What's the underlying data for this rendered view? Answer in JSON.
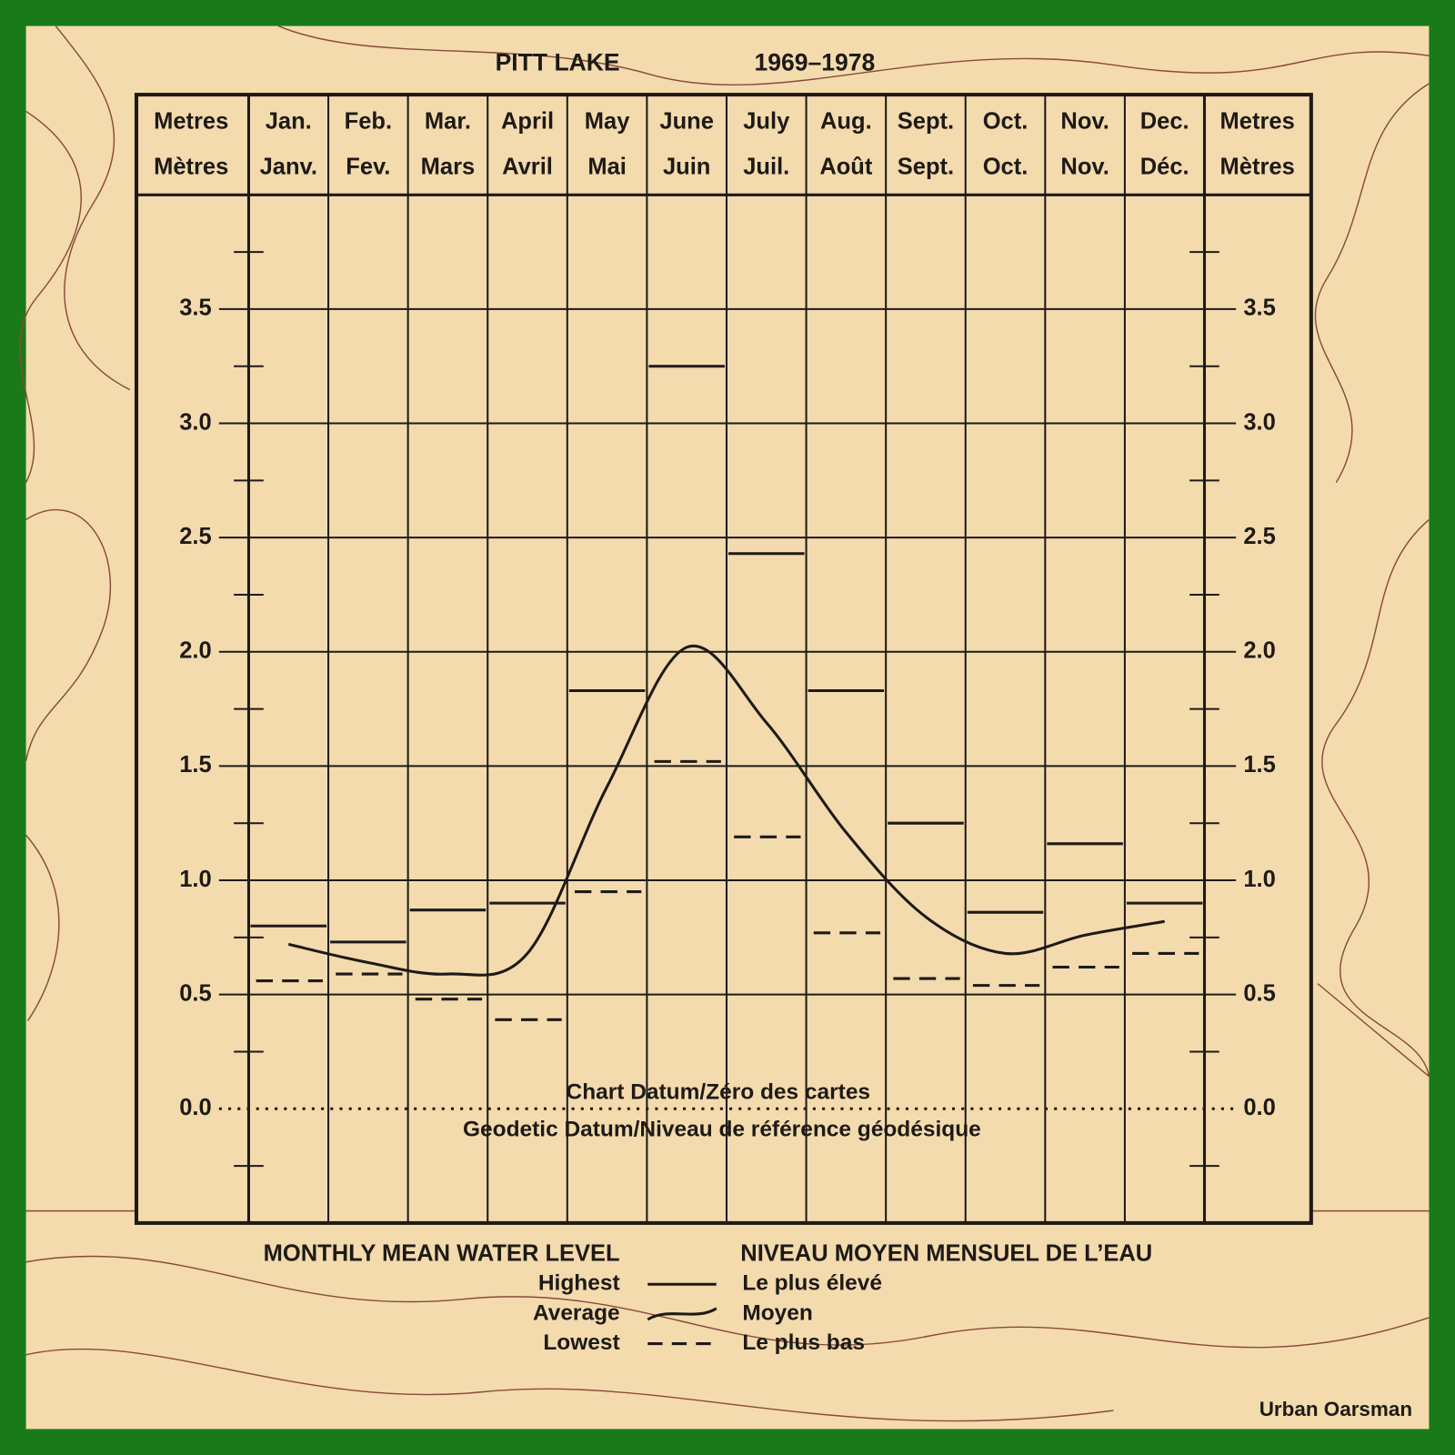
{
  "chart_data": {
    "type": "line",
    "title": "PITT LAKE",
    "period": "1969–1978",
    "y_label": "Metres",
    "y_label_fr": "Mètres",
    "categories": [
      "Jan.",
      "Feb.",
      "Mar.",
      "April",
      "May",
      "June",
      "July",
      "Aug.",
      "Sept.",
      "Oct.",
      "Nov.",
      "Dec."
    ],
    "categories_fr": [
      "Janv.",
      "Fev.",
      "Mars",
      "Avril",
      "Mai",
      "Juin",
      "Juil.",
      "Août",
      "Sept.",
      "Oct.",
      "Nov.",
      "Déc."
    ],
    "series": [
      {
        "name": "Highest",
        "name_fr": "Le plus élevé",
        "color": "#1e1a16",
        "line_style": "step",
        "values": [
          0.8,
          0.73,
          0.87,
          0.9,
          1.83,
          3.25,
          2.43,
          1.83,
          1.25,
          0.86,
          1.16,
          0.9
        ]
      },
      {
        "name": "Average",
        "name_fr": "Moyen",
        "color": "#1e1a16",
        "line_style": "curve",
        "values": [
          0.72,
          0.64,
          0.59,
          0.68,
          1.41,
          2.02,
          1.69,
          1.21,
          0.84,
          0.68,
          0.76,
          0.82
        ]
      },
      {
        "name": "Lowest",
        "name_fr": "Le plus bas",
        "color": "#1e1a16",
        "line_style": "dashed",
        "values": [
          0.56,
          0.59,
          0.48,
          0.39,
          0.95,
          1.52,
          1.19,
          0.77,
          0.57,
          0.54,
          0.62,
          0.68
        ]
      }
    ],
    "ylim": [
      -0.5,
      4.0
    ],
    "yticks": [
      {
        "value": 0,
        "label": "0.0"
      },
      0.5,
      {
        "value": 1,
        "label": "1.0"
      },
      1.5,
      {
        "value": 2,
        "label": "2.0"
      },
      2.5,
      {
        "value": 3,
        "label": "3.0"
      },
      3.5
    ],
    "yminorticks": [
      -0.25,
      0.25,
      0.75,
      1.25,
      1.75,
      2.25,
      2.75,
      3.25,
      3.75
    ],
    "grid": true,
    "annotations": [
      "Chart Datum/Zéro des cartes",
      "Geodetic Datum/Niveau de référence géodésique"
    ],
    "legend_title": "MONTHLY MEAN WATER LEVEL",
    "legend_title_fr": "NIVEAU MOYEN MENSUEL DE L’EAU",
    "credit": "Urban Oarsman"
  }
}
